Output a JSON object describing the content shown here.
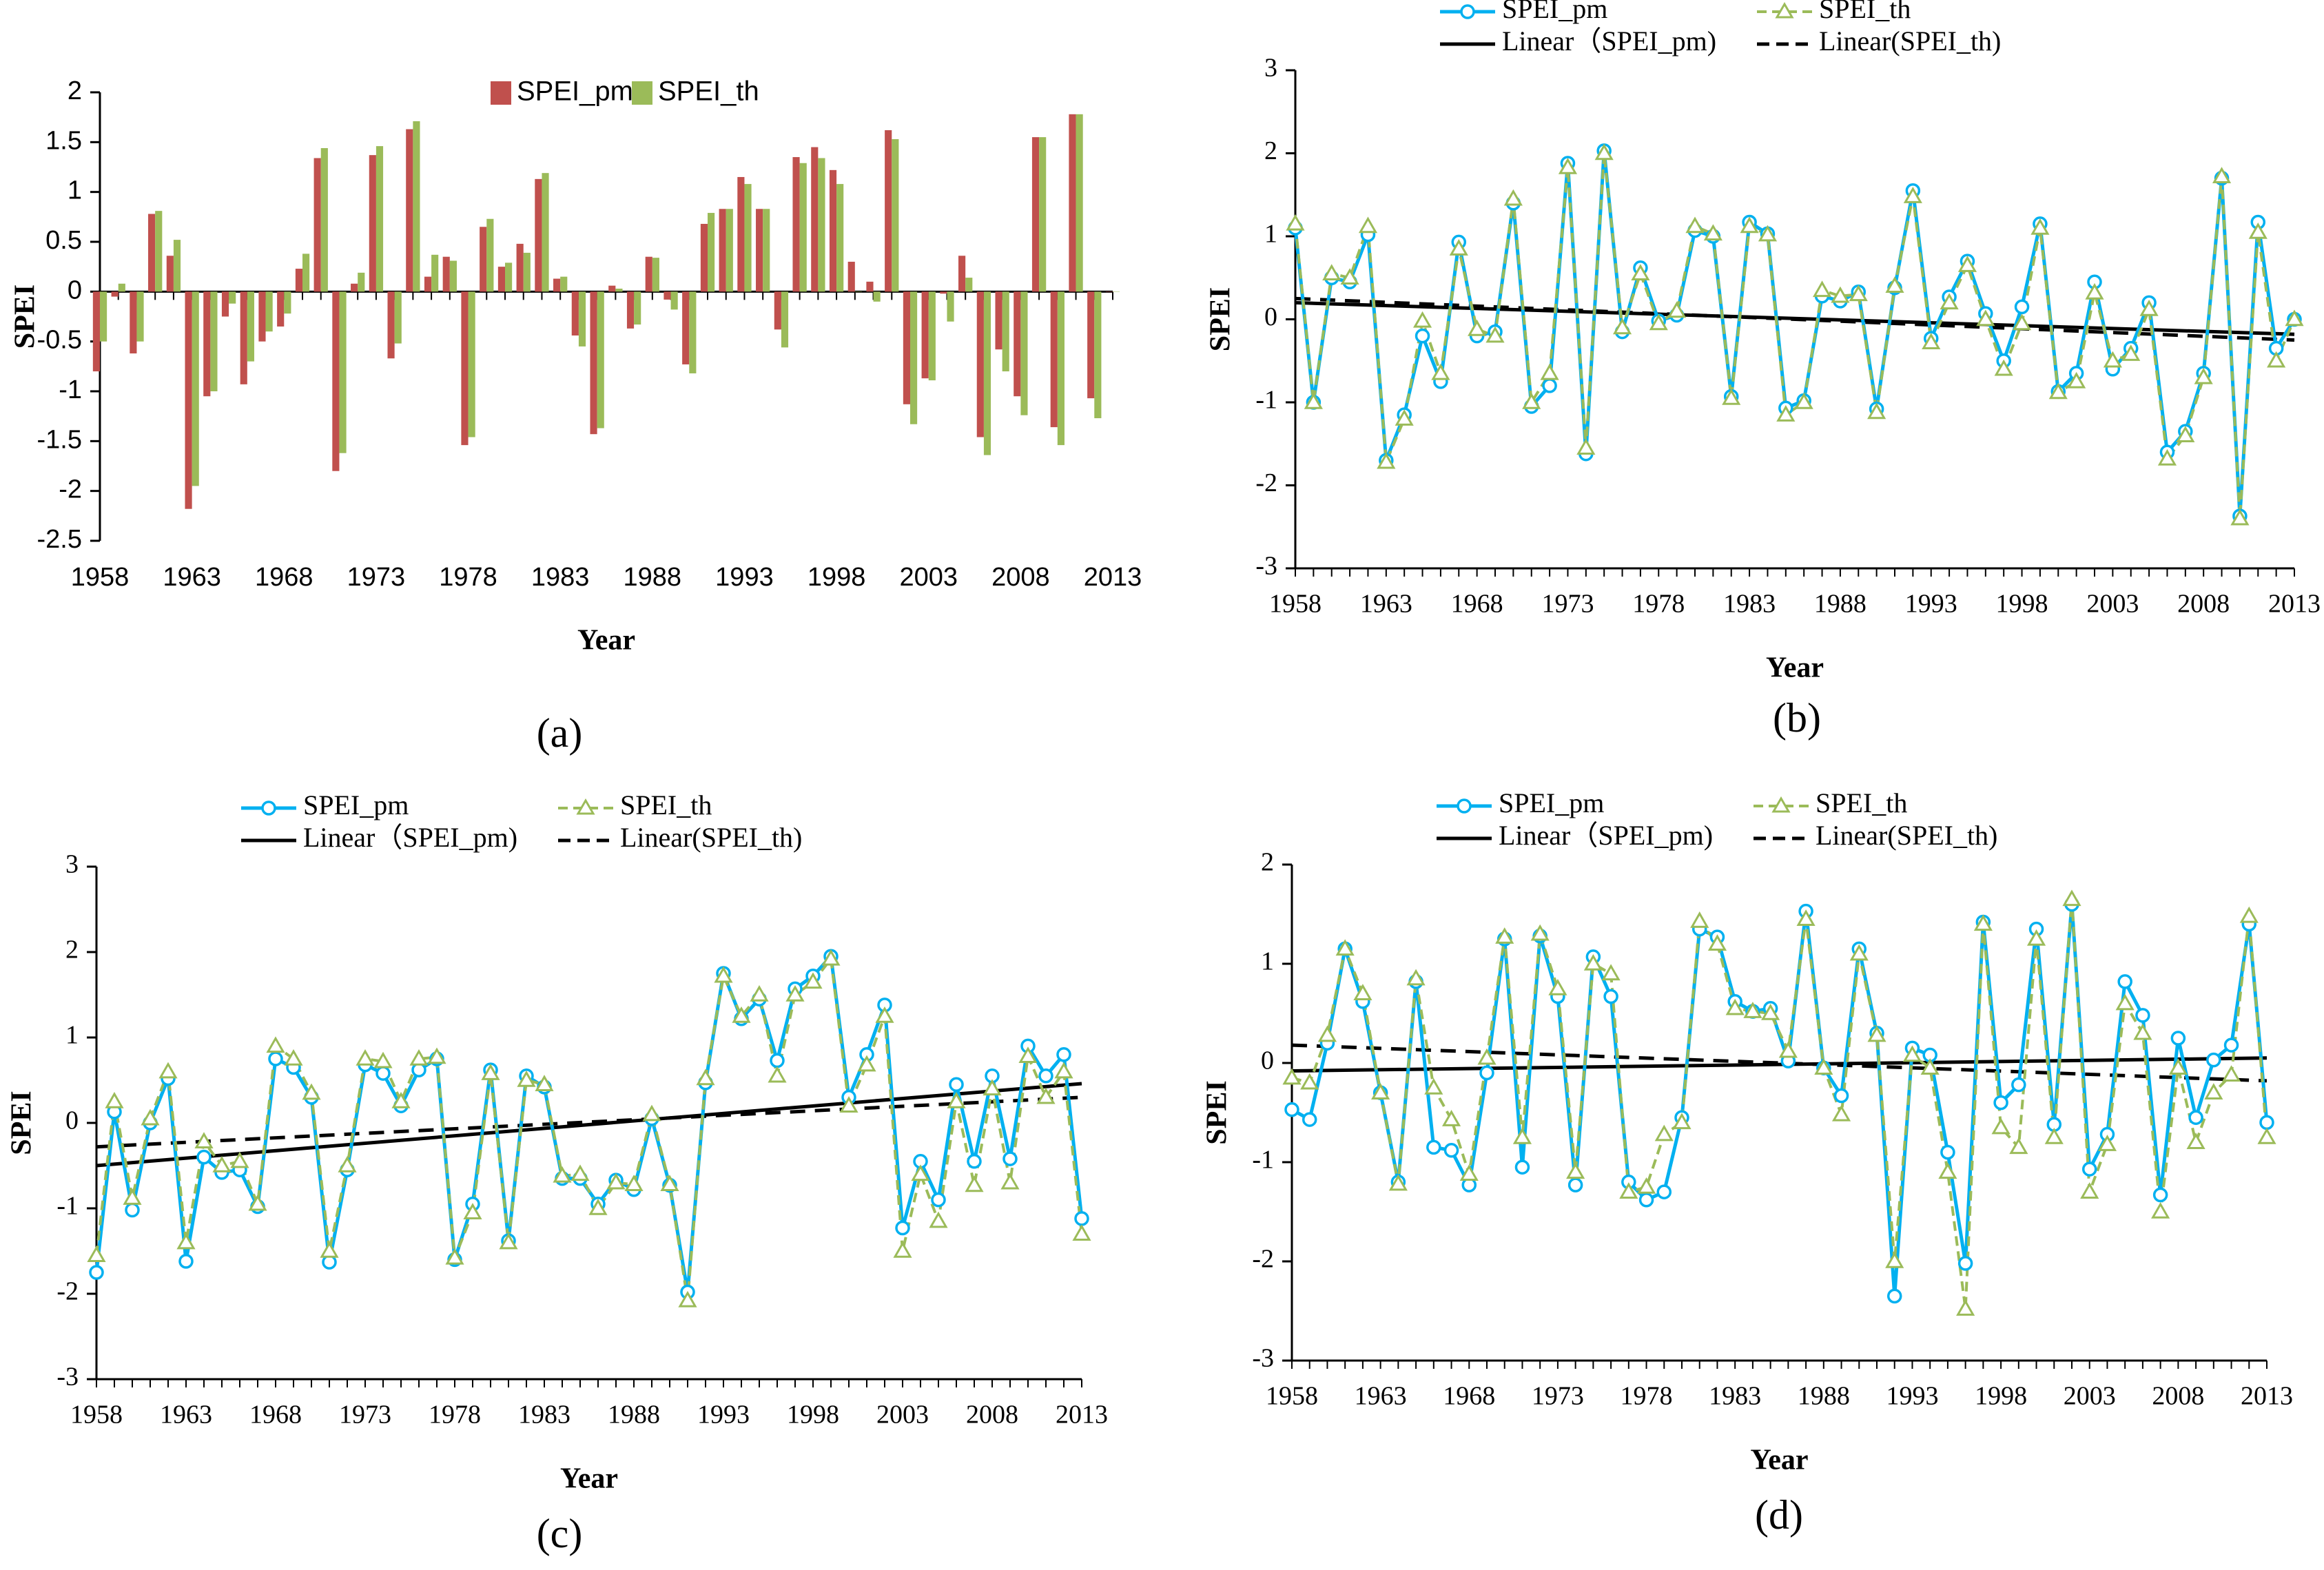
{
  "colors": {
    "pm_bar": "#C0504D",
    "th_bar": "#9BBB59",
    "pm_line": "#00B0F0",
    "th_line": "#9BBB59",
    "trend": "#000000",
    "axis": "#000000"
  },
  "chart_data": [
    {
      "panel": "a",
      "type": "bar",
      "caption": "(a)",
      "xlabel": "Year",
      "ylabel": "SPEI",
      "ylim": [
        -2.5,
        2
      ],
      "yticks": [
        2,
        1.5,
        1,
        0.5,
        0,
        -0.5,
        -1,
        -1.5,
        -2,
        -2.5
      ],
      "ytick_labels": [
        "2",
        "1.5",
        "1",
        "0.5",
        "0",
        "-0.5",
        "-1",
        "-1.5",
        "-2",
        "-2.5"
      ],
      "xlim": [
        1958,
        2013
      ],
      "xticks": [
        1958,
        1963,
        1968,
        1973,
        1978,
        1983,
        1988,
        1993,
        1998,
        2003,
        2008,
        2013
      ],
      "xtick_labels": [
        "1958",
        "1963",
        "1968",
        "1973",
        "1978",
        "1983",
        "1988",
        "1993",
        "1998",
        "2003",
        "2008",
        "2013"
      ],
      "legend_position": "top-center",
      "series": [
        {
          "name": "SPEI_pm",
          "values": [
            -0.8,
            -0.05,
            -0.62,
            0.78,
            0.36,
            -2.18,
            -1.05,
            -0.25,
            -0.93,
            -0.5,
            -0.35,
            0.23,
            1.34,
            -1.8,
            0.08,
            1.37,
            -0.67,
            1.63,
            0.15,
            0.35,
            -1.54,
            0.65,
            0.25,
            0.48,
            1.13,
            0.13,
            -0.44,
            -1.43,
            0.06,
            -0.37,
            0.35,
            -0.08,
            -0.73,
            0.68,
            0.83,
            1.15,
            0.83,
            -0.38,
            1.35,
            1.45,
            1.22,
            0.3,
            0.1,
            1.62,
            -1.13,
            -0.87,
            -0.02,
            0.36,
            -1.46,
            -0.58,
            -1.05,
            1.55,
            -1.36,
            1.78,
            -1.07,
            0.0
          ]
        },
        {
          "name": "SPEI_th",
          "values": [
            -0.5,
            0.08,
            -0.5,
            0.81,
            0.52,
            -1.95,
            -1.0,
            -0.12,
            -0.7,
            -0.4,
            -0.22,
            0.38,
            1.44,
            -1.62,
            0.19,
            1.46,
            -0.52,
            1.71,
            0.37,
            0.31,
            -1.46,
            0.73,
            0.29,
            0.39,
            1.19,
            0.15,
            -0.55,
            -1.37,
            0.03,
            -0.33,
            0.34,
            -0.18,
            -0.82,
            0.79,
            0.83,
            1.08,
            0.83,
            -0.56,
            1.29,
            1.34,
            1.08,
            0.0,
            -0.1,
            1.53,
            -1.33,
            -0.89,
            -0.3,
            0.14,
            -1.64,
            -0.8,
            -1.24,
            1.55,
            -1.54,
            1.78,
            -1.27,
            0.0
          ]
        }
      ]
    },
    {
      "panel": "b",
      "type": "line",
      "caption": "(b)",
      "xlabel": "Year",
      "ylabel": "SPEI",
      "ylim": [
        -3,
        3
      ],
      "yticks": [
        3,
        2,
        1,
        0,
        -1,
        -2,
        -3
      ],
      "ytick_labels": [
        "3",
        "2",
        "1",
        "0",
        "-1",
        "-2",
        "-3"
      ],
      "xlim": [
        1958,
        2013
      ],
      "xticks": [
        1958,
        1963,
        1968,
        1973,
        1978,
        1983,
        1988,
        1993,
        1998,
        2003,
        2008,
        2013
      ],
      "xtick_labels": [
        "1958",
        "1963",
        "1968",
        "1973",
        "1978",
        "1983",
        "1988",
        "1993",
        "1998",
        "2003",
        "2008",
        "2013"
      ],
      "legend_position": "top",
      "legend": {
        "pm": "SPEI_pm",
        "th": "SPEI_th",
        "pm_trend": "Linear（SPEI_pm)",
        "th_trend": "Linear(SPEI_th)"
      },
      "series": [
        {
          "name": "SPEI_pm",
          "values": [
            1.1,
            -1.0,
            0.5,
            0.45,
            1.02,
            -1.7,
            -1.15,
            -0.2,
            -0.75,
            0.93,
            -0.2,
            -0.15,
            1.4,
            -1.05,
            -0.8,
            1.88,
            -1.62,
            2.03,
            -0.15,
            0.62,
            -0.02,
            0.05,
            1.07,
            1.0,
            -0.93,
            1.17,
            1.03,
            -1.07,
            -0.98,
            0.28,
            0.22,
            0.33,
            -1.08,
            0.38,
            1.55,
            -0.23,
            0.27,
            0.7,
            0.07,
            -0.5,
            0.15,
            1.15,
            -0.87,
            -0.65,
            0.45,
            -0.6,
            -0.35,
            0.2,
            -1.6,
            -1.35,
            -0.65,
            1.7,
            -2.37,
            1.17,
            -0.35,
            0.0
          ]
        },
        {
          "name": "SPEI_th",
          "values": [
            1.15,
            -1.0,
            0.55,
            0.5,
            1.12,
            -1.72,
            -1.2,
            -0.02,
            -0.65,
            0.85,
            -0.12,
            -0.2,
            1.45,
            -1.0,
            -0.65,
            1.83,
            -1.55,
            2.0,
            -0.1,
            0.55,
            -0.05,
            0.1,
            1.12,
            1.03,
            -0.95,
            1.12,
            1.02,
            -1.15,
            -1.0,
            0.35,
            0.28,
            0.3,
            -1.12,
            0.4,
            1.48,
            -0.28,
            0.2,
            0.65,
            0.0,
            -0.6,
            -0.05,
            1.1,
            -0.88,
            -0.75,
            0.32,
            -0.5,
            -0.42,
            0.12,
            -1.68,
            -1.4,
            -0.7,
            1.72,
            -2.4,
            1.05,
            -0.5,
            0.0
          ]
        }
      ],
      "trends": [
        {
          "name": "Linear（SPEI_pm)",
          "style": "solid",
          "start": 0.2,
          "end": -0.18
        },
        {
          "name": "Linear(SPEI_th)",
          "style": "dashed",
          "start": 0.25,
          "end": -0.25
        }
      ]
    },
    {
      "panel": "c",
      "type": "line",
      "caption": "(c)",
      "xlabel": "Year",
      "ylabel": "SPEI",
      "ylim": [
        -3,
        3
      ],
      "yticks": [
        3,
        2,
        1,
        0,
        -1,
        -2,
        -3
      ],
      "ytick_labels": [
        "3",
        "2",
        "1",
        "0",
        "-1",
        "-2",
        "-3"
      ],
      "xlim": [
        1958,
        2013
      ],
      "xticks": [
        1958,
        1963,
        1968,
        1973,
        1978,
        1983,
        1988,
        1993,
        1998,
        2003,
        2008,
        2013
      ],
      "xtick_labels": [
        "1958",
        "1963",
        "1968",
        "1973",
        "1978",
        "1983",
        "1988",
        "1993",
        "1998",
        "2003",
        "2008",
        "2013"
      ],
      "legend_position": "top",
      "legend": {
        "pm": "SPEI_pm",
        "th": "SPEI_th",
        "pm_trend": "Linear（SPEI_pm)",
        "th_trend": "Linear(SPEI_th)"
      },
      "series": [
        {
          "name": "SPEI_pm",
          "values": [
            -1.75,
            0.13,
            -1.02,
            0.0,
            0.52,
            -1.62,
            -0.4,
            -0.58,
            -0.55,
            -0.98,
            0.75,
            0.65,
            0.3,
            -1.63,
            -0.55,
            0.68,
            0.58,
            0.2,
            0.62,
            0.75,
            -1.6,
            -0.95,
            0.62,
            -1.38,
            0.55,
            0.42,
            -0.65,
            -0.65,
            -0.95,
            -0.67,
            -0.78,
            0.05,
            -0.73,
            -1.98,
            0.47,
            1.75,
            1.22,
            1.45,
            0.73,
            1.57,
            1.72,
            1.95,
            0.3,
            0.8,
            1.38,
            -1.23,
            -0.45,
            -0.9,
            0.45,
            -0.45,
            0.55,
            -0.42,
            0.9,
            0.55,
            0.8,
            -1.12
          ]
        },
        {
          "name": "SPEI_th",
          "values": [
            -1.55,
            0.25,
            -0.88,
            0.05,
            0.6,
            -1.4,
            -0.22,
            -0.5,
            -0.45,
            -0.95,
            0.9,
            0.75,
            0.35,
            -1.5,
            -0.5,
            0.75,
            0.72,
            0.25,
            0.75,
            0.77,
            -1.58,
            -1.05,
            0.58,
            -1.4,
            0.5,
            0.45,
            -0.62,
            -0.6,
            -1.0,
            -0.7,
            -0.72,
            0.1,
            -0.72,
            -2.08,
            0.52,
            1.72,
            1.25,
            1.5,
            0.55,
            1.5,
            1.65,
            1.92,
            0.2,
            0.68,
            1.25,
            -1.5,
            -0.6,
            -1.15,
            0.25,
            -0.73,
            0.4,
            -0.7,
            0.78,
            0.3,
            0.6,
            -1.3
          ]
        }
      ],
      "trends": [
        {
          "name": "Linear（SPEI_pm)",
          "style": "solid",
          "start": -0.5,
          "end": 0.46
        },
        {
          "name": "Linear(SPEI_th)",
          "style": "dashed",
          "start": -0.28,
          "end": 0.3
        }
      ]
    },
    {
      "panel": "d",
      "type": "line",
      "caption": "(d)",
      "xlabel": "Year",
      "ylabel": "SPEI",
      "ylim": [
        -3,
        2
      ],
      "yticks": [
        2,
        1,
        0,
        -1,
        -2,
        -3
      ],
      "ytick_labels": [
        "2",
        "1",
        "0",
        "-1",
        "-2",
        "-3"
      ],
      "xlim": [
        1958,
        2013
      ],
      "xticks": [
        1958,
        1963,
        1968,
        1973,
        1978,
        1983,
        1988,
        1993,
        1998,
        2003,
        2008,
        2013
      ],
      "xtick_labels": [
        "1958",
        "1963",
        "1968",
        "1973",
        "1978",
        "1983",
        "1988",
        "1993",
        "1998",
        "2003",
        "2008",
        "2013"
      ],
      "legend_position": "top",
      "legend": {
        "pm": "SPEI_pm",
        "th": "SPEI_th",
        "pm_trend": "Linear（SPEI_pm)",
        "th_trend": "Linear(SPEI_th)"
      },
      "series": [
        {
          "name": "SPEI_pm",
          "values": [
            -0.47,
            -0.57,
            0.2,
            1.15,
            0.62,
            -0.3,
            -1.2,
            0.82,
            -0.85,
            -0.88,
            -1.23,
            -0.1,
            1.25,
            -1.05,
            1.28,
            0.67,
            -1.23,
            1.07,
            0.67,
            -1.2,
            -1.38,
            -1.3,
            -0.55,
            1.35,
            1.27,
            0.62,
            0.52,
            0.55,
            0.02,
            1.53,
            -0.05,
            -0.33,
            1.15,
            0.3,
            -2.35,
            0.15,
            0.08,
            -0.9,
            -2.02,
            1.42,
            -0.4,
            -0.22,
            1.35,
            -0.62,
            1.6,
            -1.07,
            -0.72,
            0.82,
            0.48,
            -1.33,
            0.25,
            -0.55,
            0.03,
            0.18,
            1.4,
            -0.6
          ]
        },
        {
          "name": "SPEI_th",
          "values": [
            -0.15,
            -0.2,
            0.28,
            1.15,
            0.7,
            -0.3,
            -1.22,
            0.85,
            -0.25,
            -0.57,
            -1.12,
            0.05,
            1.27,
            -0.75,
            1.3,
            0.75,
            -1.1,
            1.0,
            0.9,
            -1.3,
            -1.25,
            -0.72,
            -0.6,
            1.43,
            1.2,
            0.55,
            0.52,
            0.5,
            0.12,
            1.45,
            -0.05,
            -0.52,
            1.1,
            0.28,
            -2.0,
            0.08,
            -0.05,
            -1.1,
            -2.48,
            1.4,
            -0.65,
            -0.85,
            1.25,
            -0.75,
            1.65,
            -1.3,
            -0.82,
            0.6,
            0.3,
            -1.5,
            -0.05,
            -0.8,
            -0.3,
            -0.12,
            1.48,
            -0.75
          ]
        }
      ],
      "trends": [
        {
          "name": "Linear（SPEI_pm)",
          "style": "solid",
          "start": -0.08,
          "end": 0.05
        },
        {
          "name": "Linear(SPEI_th)",
          "style": "dashed",
          "start": 0.18,
          "end": -0.18
        }
      ]
    }
  ]
}
